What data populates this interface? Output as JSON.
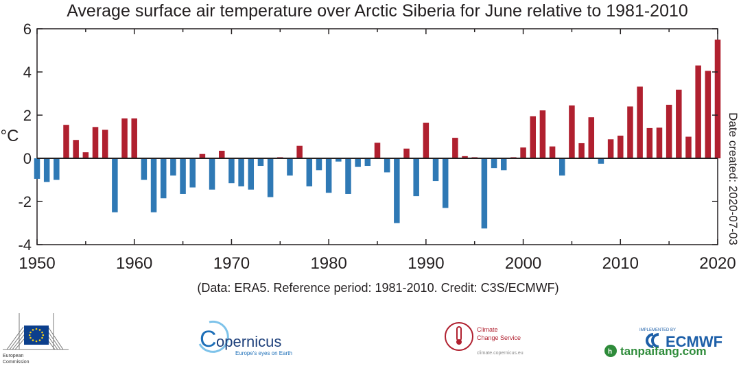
{
  "chart_data": {
    "type": "bar",
    "title": "Average surface air temperature over Arctic Siberia for June relative to 1981-2010",
    "ylabel": "°C",
    "xlabel": "",
    "side_note": "Date created: 2020-07-03",
    "caption": "(Data: ERA5.  Reference period: 1981-2010.  Credit: C3S/ECMWF)",
    "xlim": [
      1950,
      2020
    ],
    "ylim": [
      -4,
      6
    ],
    "x_ticks": [
      "1950",
      "1960",
      "1970",
      "1980",
      "1990",
      "2000",
      "2010",
      "2020"
    ],
    "y_ticks": [
      "-4",
      "-2",
      "0",
      "2",
      "4",
      "6"
    ],
    "positive_color": "#b0202f",
    "negative_color": "#2f79b5",
    "x": [
      1950,
      1951,
      1952,
      1953,
      1954,
      1955,
      1956,
      1957,
      1958,
      1959,
      1960,
      1961,
      1962,
      1963,
      1964,
      1965,
      1966,
      1967,
      1968,
      1969,
      1970,
      1971,
      1972,
      1973,
      1974,
      1975,
      1976,
      1977,
      1978,
      1979,
      1980,
      1981,
      1982,
      1983,
      1984,
      1985,
      1986,
      1987,
      1988,
      1989,
      1990,
      1991,
      1992,
      1993,
      1994,
      1995,
      1996,
      1997,
      1998,
      1999,
      2000,
      2001,
      2002,
      2003,
      2004,
      2005,
      2006,
      2007,
      2008,
      2009,
      2010,
      2011,
      2012,
      2013,
      2014,
      2015,
      2016,
      2017,
      2018,
      2019,
      2020
    ],
    "values": [
      -0.95,
      -1.1,
      -1.0,
      1.55,
      0.85,
      0.28,
      1.45,
      1.32,
      -2.5,
      1.85,
      1.85,
      -1.0,
      -2.5,
      -1.85,
      -0.8,
      -1.65,
      -1.35,
      0.2,
      -1.45,
      0.35,
      -1.15,
      -1.3,
      -1.45,
      -0.35,
      -1.8,
      0.05,
      -0.8,
      0.58,
      -1.3,
      -0.55,
      -1.6,
      -0.15,
      -1.65,
      -0.4,
      -0.35,
      0.72,
      -0.65,
      -3.0,
      0.45,
      -1.75,
      1.65,
      -1.05,
      -2.3,
      0.95,
      0.1,
      0.05,
      -3.25,
      -0.45,
      -0.55,
      0.05,
      0.5,
      1.95,
      2.22,
      0.55,
      -0.8,
      2.45,
      0.7,
      1.9,
      -0.25,
      0.88,
      1.05,
      2.4,
      3.32,
      1.4,
      1.42,
      2.48,
      3.18,
      1.0,
      4.3,
      4.05,
      5.5
    ]
  },
  "footer": {
    "eu_label_1": "European",
    "eu_label_2": "Commission",
    "copernicus": "opernicus",
    "copernicus_c": "C",
    "copernicus_tag": "Europe's eyes on Earth",
    "c3s_line1": "Climate",
    "c3s_line2": "Change Service",
    "c3s_url": "climate.copernicus.eu",
    "ecmwf_implemented": "IMPLEMENTED BY",
    "ecmwf_name": "ECMWF",
    "watermark": "tanpaifang.com"
  }
}
